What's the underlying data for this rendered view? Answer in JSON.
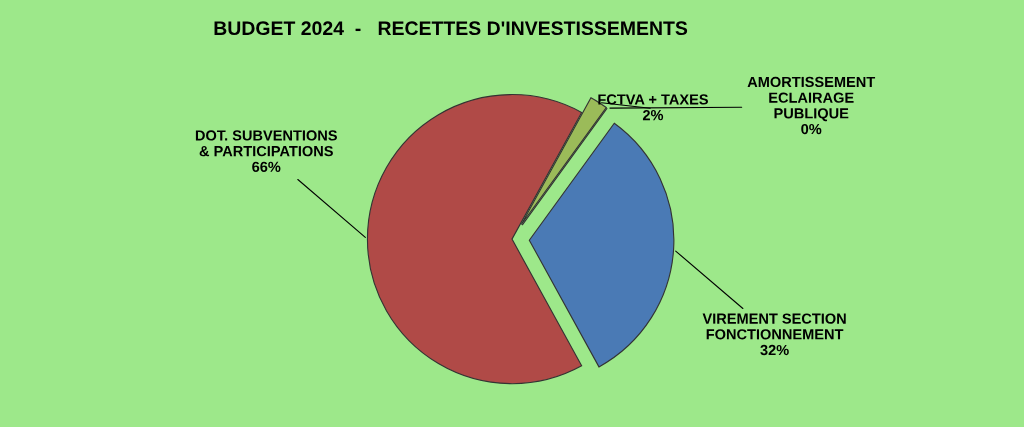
{
  "chart_data": {
    "type": "pie",
    "title": "BUDGET 2024  -   RECETTES D'INVESTISSEMENTS",
    "categories": [
      "DOT. SUBVENTIONS\n& PARTICIPATIONS",
      "FCTVA + TAXES",
      "AMORTISSEMENT\nECLAIRAGE\nPUBLIQUE",
      "VIREMENT SECTION\nFONCTIONNEMENT"
    ],
    "values": [
      66,
      2,
      0,
      32
    ],
    "value_labels": [
      "66%",
      "2%",
      "0%",
      "32%"
    ],
    "colors": [
      "#b04a47",
      "#9bbb59",
      "#7f5fa0",
      "#4a7ab5"
    ],
    "legend": false
  }
}
